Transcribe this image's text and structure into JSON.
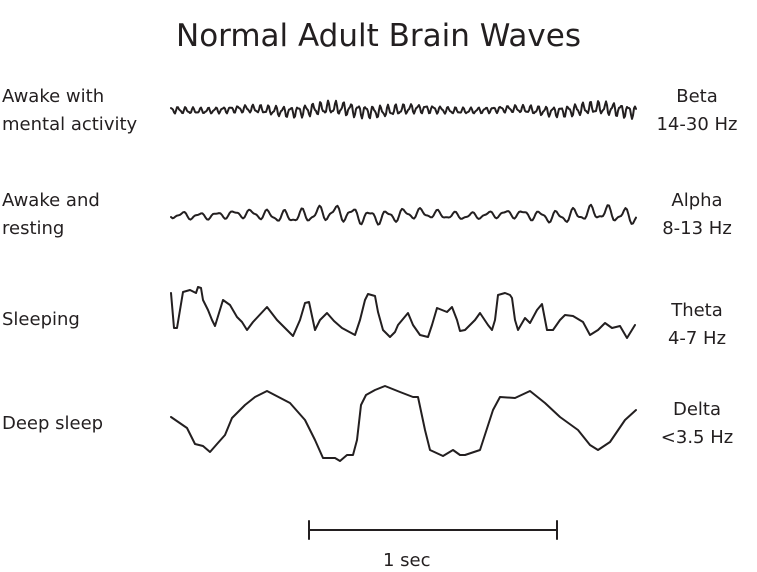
{
  "title": "Normal Adult Brain Waves",
  "rows": [
    {
      "state": "Awake with mental activity",
      "state_lines": [
        "Awake with",
        "mental activity"
      ],
      "band": "Beta",
      "freq": "14-30 Hz"
    },
    {
      "state": "Awake and resting",
      "state_lines": [
        "Awake and",
        "resting"
      ],
      "band": "Alpha",
      "freq": "8-13 Hz"
    },
    {
      "state": "Sleeping",
      "state_lines": [
        "Sleeping"
      ],
      "band": "Theta",
      "freq": "4-7 Hz"
    },
    {
      "state": "Deep sleep",
      "state_lines": [
        "Deep sleep"
      ],
      "band": "Delta",
      "freq": "<3.5 Hz"
    }
  ],
  "scale_bar": {
    "label": "1 sec"
  },
  "colors": {
    "ink": "#231f20"
  }
}
